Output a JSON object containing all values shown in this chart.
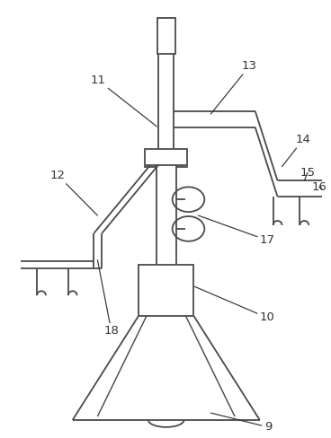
{
  "bg_color": "#ffffff",
  "line_color": "#4a4a4a",
  "label_color": "#333333",
  "fig_width": 3.68,
  "fig_height": 4.88
}
